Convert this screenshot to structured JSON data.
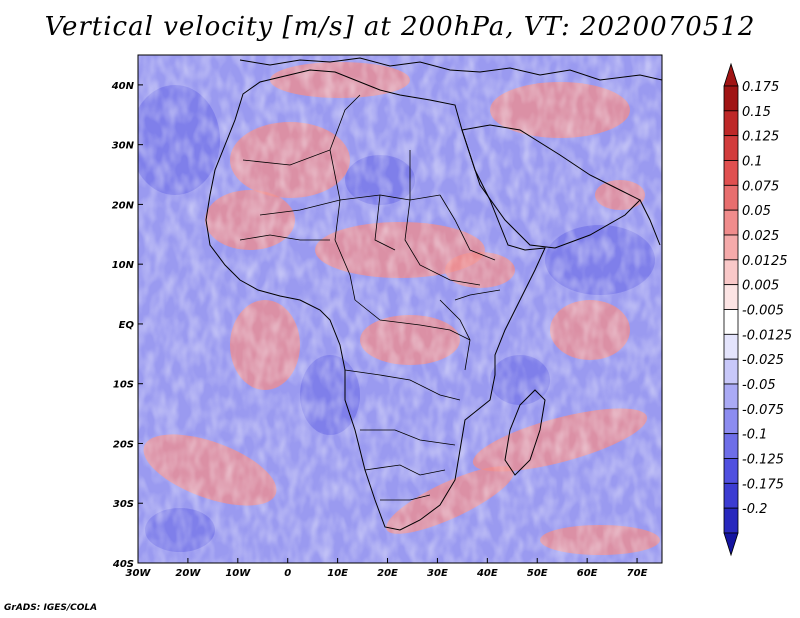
{
  "title": "Vertical velocity [m/s] at 200hPa, VT: 2020070512",
  "credit": "GrADS: IGES/COLA",
  "map": {
    "lon_range": [
      -30,
      75
    ],
    "lat_range": [
      -40,
      45
    ],
    "lon_ticks": [
      {
        "value": -30,
        "label": "30W"
      },
      {
        "value": -20,
        "label": "20W"
      },
      {
        "value": -10,
        "label": "10W"
      },
      {
        "value": 0,
        "label": "0"
      },
      {
        "value": 10,
        "label": "10E"
      },
      {
        "value": 20,
        "label": "20E"
      },
      {
        "value": 30,
        "label": "30E"
      },
      {
        "value": 40,
        "label": "40E"
      },
      {
        "value": 50,
        "label": "50E"
      },
      {
        "value": 60,
        "label": "60E"
      },
      {
        "value": 70,
        "label": "70E"
      }
    ],
    "lat_ticks": [
      {
        "value": 40,
        "label": "40N"
      },
      {
        "value": 30,
        "label": "30N"
      },
      {
        "value": 20,
        "label": "20N"
      },
      {
        "value": 10,
        "label": "10N"
      },
      {
        "value": 0,
        "label": "EQ"
      },
      {
        "value": -10,
        "label": "10S"
      },
      {
        "value": -20,
        "label": "20S"
      },
      {
        "value": -30,
        "label": "30S"
      },
      {
        "value": -40,
        "label": "40S"
      }
    ]
  },
  "colorbar": {
    "levels": [
      {
        "label": "0.175",
        "color": "#a01414"
      },
      {
        "label": "0.15",
        "color": "#be2828"
      },
      {
        "label": "0.125",
        "color": "#d23c3c"
      },
      {
        "label": "0.1",
        "color": "#e05050"
      },
      {
        "label": "0.075",
        "color": "#e86e6e"
      },
      {
        "label": "0.05",
        "color": "#f08c8c"
      },
      {
        "label": "0.025",
        "color": "#f5aaaa"
      },
      {
        "label": "0.0125",
        "color": "#f9c8c8"
      },
      {
        "label": "0.005",
        "color": "#fce4e4"
      },
      {
        "label": "-0.005",
        "color": "#ffffff"
      },
      {
        "label": "-0.0125",
        "color": "#e4e4fc"
      },
      {
        "label": "-0.025",
        "color": "#c8c8f9"
      },
      {
        "label": "-0.05",
        "color": "#aaaaf5"
      },
      {
        "label": "-0.075",
        "color": "#8c8cf0"
      },
      {
        "label": "-0.1",
        "color": "#6e6ee8"
      },
      {
        "label": "-0.125",
        "color": "#5050e0"
      },
      {
        "label": "-0.175",
        "color": "#3c3cd2"
      },
      {
        "label": "-0.2",
        "color": "#2828be"
      }
    ],
    "top_arrow_color": "#a01414",
    "bottom_arrow_color": "#1414a0"
  },
  "colors": {
    "background_blue": "#9a9af0",
    "descending_blue": "#6e6ee6",
    "ascending_red": "#f08c8c"
  }
}
